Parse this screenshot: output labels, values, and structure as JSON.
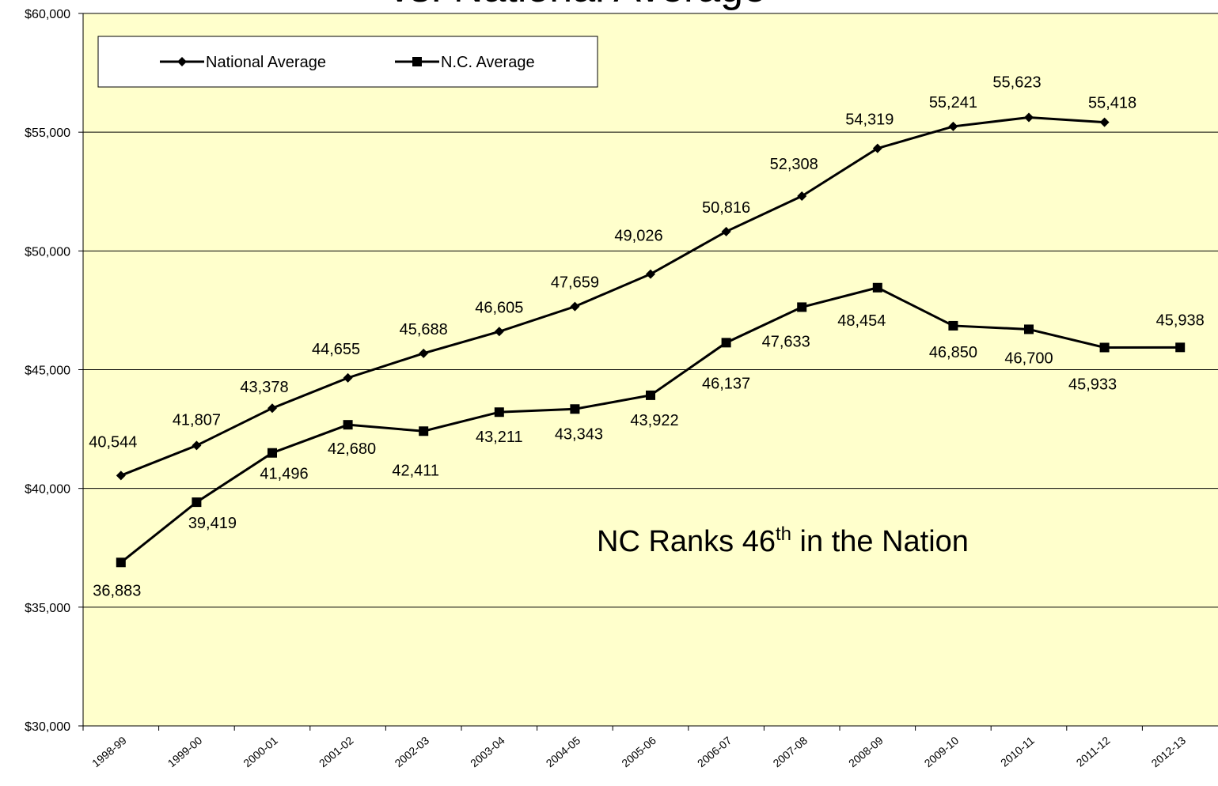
{
  "chart_data": {
    "type": "line",
    "title": "vs. National Average",
    "annotation": {
      "text": "NC Ranks 46",
      "sup": "th",
      "rest": " in the Nation"
    },
    "categories": [
      "1998-99",
      "1999-00",
      "2000-01",
      "2001-02",
      "2002-03",
      "2003-04",
      "2004-05",
      "2005-06",
      "2006-07",
      "2007-08",
      "2008-09",
      "2009-10",
      "2010-11",
      "2011-12",
      "2012-13"
    ],
    "series": [
      {
        "name": "National Average",
        "color": "#000000",
        "marker": "diamond",
        "values": [
          40544,
          41807,
          43378,
          44655,
          45688,
          46605,
          47659,
          49026,
          50816,
          52308,
          54319,
          55241,
          55623,
          55418,
          null
        ],
        "value_labels": [
          "40,544",
          "41,807",
          "43,378",
          "44,655",
          "45,688",
          "46,605",
          "47,659",
          "49,026",
          "50,816",
          "52,308",
          "54,319",
          "55,241",
          "55,623",
          "55,418",
          null
        ]
      },
      {
        "name": "N.C. Average",
        "color": "#000000",
        "marker": "square",
        "values": [
          36883,
          39419,
          41496,
          42680,
          42411,
          43211,
          43343,
          43922,
          46137,
          47633,
          48454,
          46850,
          46700,
          45933,
          45938
        ],
        "value_labels": [
          "36,883",
          "39,419",
          "41,496",
          "42,680",
          "42,411",
          "43,211",
          "43,343",
          "43,922",
          "46,137",
          "47,633",
          "48,454",
          "46,850",
          "46,700",
          "45,933",
          "45,938"
        ]
      }
    ],
    "ylim": [
      30000,
      60000
    ],
    "yticks": [
      {
        "value": 30000,
        "label": "$30,000"
      },
      {
        "value": 35000,
        "label": "$35,000"
      },
      {
        "value": 40000,
        "label": "$40,000"
      },
      {
        "value": 45000,
        "label": "$45,000"
      },
      {
        "value": 50000,
        "label": "$50,000"
      },
      {
        "value": 55000,
        "label": "$55,000"
      },
      {
        "value": 60000,
        "label": "$60,000"
      }
    ],
    "grid": true,
    "legend": "top-left",
    "background": "#ffffcc"
  }
}
